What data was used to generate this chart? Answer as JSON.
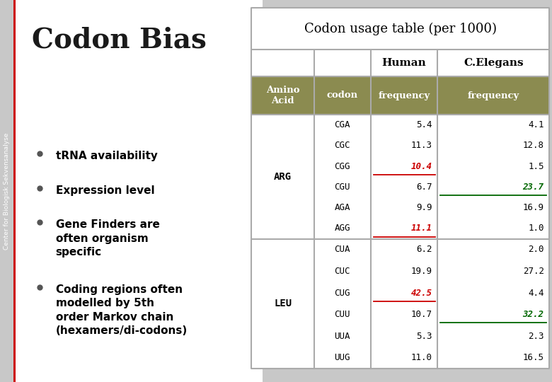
{
  "title": "Codon Bias",
  "table_title": "Codon usage table (per 1000)",
  "sidebar_text": "Center for Biologisk Sekvensanalyse",
  "bullets": [
    "tRNA availability",
    "Expression level",
    "Gene Finders are\noften organism\nspecific",
    "Coding regions often\nmodelled by 5th\norder Markov chain\n(hexamers/di-codons)"
  ],
  "header_bg": "#8B8B50",
  "slide_bg": "#C8C8C8",
  "sidebar_bg": "#888888",
  "red_color": "#CC0000",
  "sidebar_accent": "#CC0000",
  "green_color": "#006600",
  "arg_codons": [
    "CGA",
    "CGC",
    "CGG",
    "CGU",
    "AGA",
    "AGG"
  ],
  "arg_human": [
    "5.4",
    "11.3",
    "10.4",
    "6.7",
    "9.9",
    "11.1"
  ],
  "arg_celegans": [
    "4.1",
    "12.8",
    "1.5",
    "23.7",
    "16.9",
    "1.0"
  ],
  "leu_codons": [
    "CUA",
    "CUC",
    "CUG",
    "CUU",
    "UUA",
    "UUG"
  ],
  "leu_human": [
    "6.2",
    "19.9",
    "42.5",
    "10.7",
    "5.3",
    "11.0"
  ],
  "leu_celegans": [
    "2.0",
    "27.2",
    "4.4",
    "32.2",
    "2.3",
    "16.5"
  ]
}
